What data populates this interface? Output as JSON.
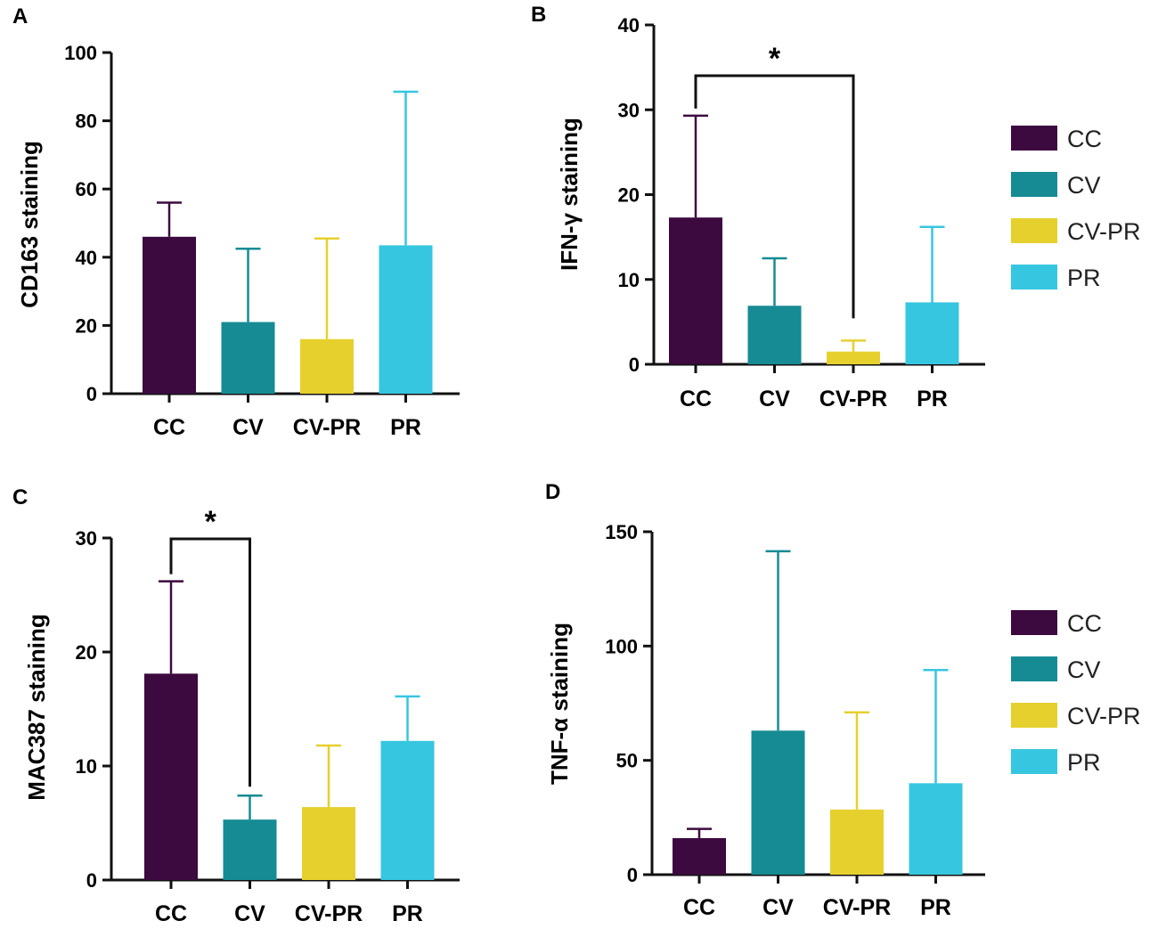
{
  "colors": {
    "CC": "#3c0a3f",
    "CV": "#168b94",
    "CV-PR": "#e6d02e",
    "PR": "#37c6e0"
  },
  "legends": [
    {
      "entries": [
        "CC",
        "CV",
        "CV-PR",
        "PR"
      ]
    },
    {
      "entries": [
        "CC",
        "CV",
        "CV-PR",
        "PR"
      ]
    }
  ],
  "chart_data": [
    {
      "panel": "A",
      "type": "bar",
      "ylabel": "CD163 staining",
      "categories": [
        "CC",
        "CV",
        "CV-PR",
        "PR"
      ],
      "values": [
        46,
        21,
        16,
        43.5
      ],
      "error_upper": [
        56,
        42.5,
        45.5,
        88.5
      ],
      "ylim": [
        0,
        100
      ],
      "yticks": [
        "0",
        "20",
        "40",
        "60",
        "80",
        "100"
      ],
      "significance": []
    },
    {
      "panel": "B",
      "type": "bar",
      "ylabel": "IFN-γ staining",
      "categories": [
        "CC",
        "CV",
        "CV-PR",
        "PR"
      ],
      "values": [
        17.3,
        6.9,
        1.5,
        7.3
      ],
      "error_upper": [
        29.3,
        12.5,
        2.8,
        16.2
      ],
      "ylim": [
        0,
        40
      ],
      "yticks": [
        "0",
        "10",
        "20",
        "30",
        "40"
      ],
      "significance": [
        {
          "from": "CC",
          "to": "CV-PR",
          "label": "*"
        }
      ]
    },
    {
      "panel": "C",
      "type": "bar",
      "ylabel": "MAC387 staining",
      "categories": [
        "CC",
        "CV",
        "CV-PR",
        "PR"
      ],
      "values": [
        18.1,
        5.3,
        6.4,
        12.2
      ],
      "error_upper": [
        26.2,
        7.4,
        11.8,
        16.1
      ],
      "ylim": [
        0,
        30
      ],
      "yticks": [
        "0",
        "10",
        "20",
        "30"
      ],
      "significance": [
        {
          "from": "CC",
          "to": "CV",
          "label": "*"
        }
      ]
    },
    {
      "panel": "D",
      "type": "bar",
      "ylabel": "TNF-α staining",
      "categories": [
        "CC",
        "CV",
        "CV-PR",
        "PR"
      ],
      "values": [
        16,
        63,
        28.5,
        40
      ],
      "error_upper": [
        20,
        141.5,
        71,
        89.5
      ],
      "ylim": [
        0,
        150
      ],
      "yticks": [
        "0",
        "50",
        "100",
        "150"
      ],
      "significance": []
    }
  ]
}
